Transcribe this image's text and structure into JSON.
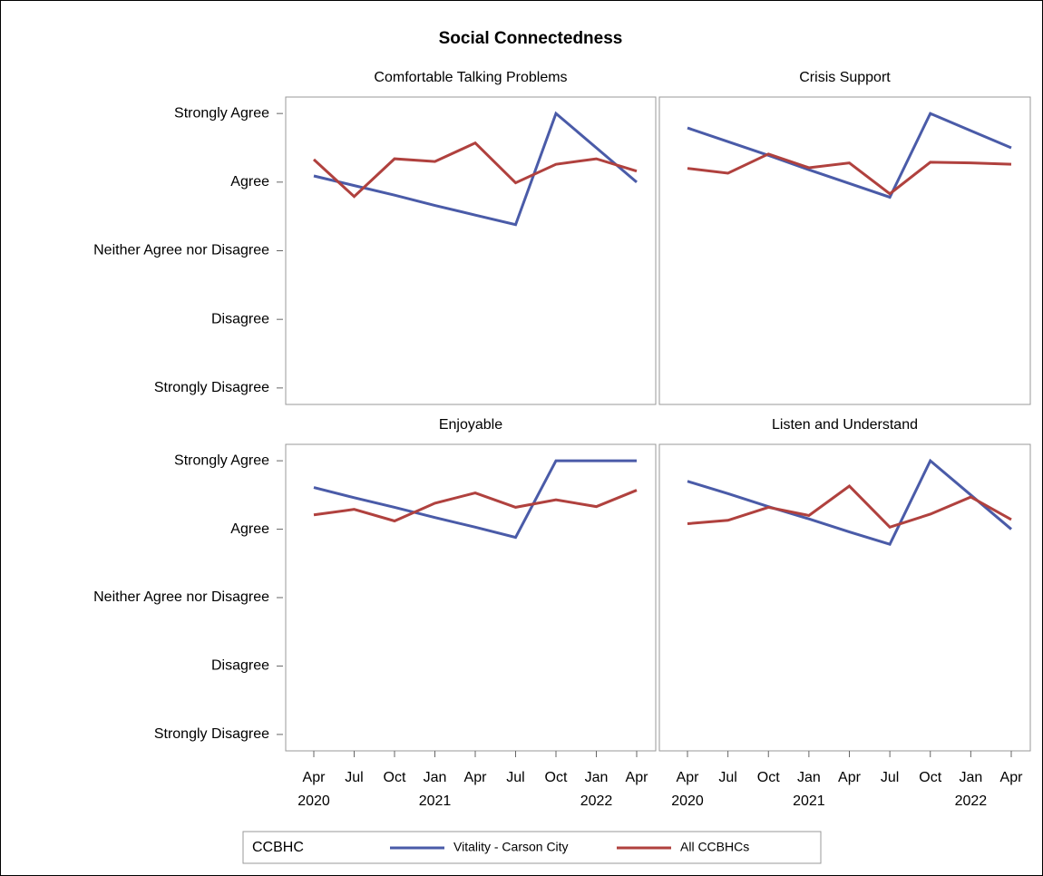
{
  "chart_data": {
    "type": "line",
    "title": "Social Connectedness",
    "categories": [
      "Apr",
      "Jul",
      "Oct",
      "Jan",
      "Apr",
      "Jul",
      "Oct",
      "Jan",
      "Apr"
    ],
    "x_years": [
      "2020",
      null,
      null,
      "2021",
      null,
      null,
      null,
      "2022",
      null
    ],
    "ylim": [
      0.76,
      5.24
    ],
    "yticks": [
      {
        "value": 1,
        "label": "Strongly Disagree"
      },
      {
        "value": 2,
        "label": "Disagree"
      },
      {
        "value": 3,
        "label": "Neither Agree nor Disagree"
      },
      {
        "value": 4,
        "label": "Agree"
      },
      {
        "value": 5,
        "label": "Strongly Agree"
      }
    ],
    "legend_title": "CCBHC",
    "legend": [
      {
        "name": "Vitality - Carson City",
        "color": "#4a5ba8"
      },
      {
        "name": "All CCBHCs",
        "color": "#b0413e"
      }
    ],
    "panels": [
      {
        "title": "Comfortable Talking Problems",
        "series": [
          {
            "values": [
              4.09,
              3.95,
              3.81,
              3.66,
              3.52,
              3.38,
              5.0,
              4.5,
              4.0
            ]
          },
          {
            "values": [
              4.33,
              3.79,
              4.34,
              4.3,
              4.57,
              3.99,
              4.26,
              4.34,
              4.16
            ]
          }
        ]
      },
      {
        "title": "Crisis Support",
        "series": [
          {
            "values": [
              4.79,
              4.59,
              4.39,
              4.18,
              3.98,
              3.78,
              5.0,
              4.75,
              4.5
            ]
          },
          {
            "values": [
              4.2,
              4.13,
              4.41,
              4.21,
              4.28,
              3.83,
              4.29,
              4.28,
              4.26
            ]
          }
        ]
      },
      {
        "title": "Enjoyable",
        "series": [
          {
            "values": [
              4.61,
              4.46,
              4.32,
              4.17,
              4.03,
              3.88,
              5.0,
              5.0,
              5.0
            ]
          },
          {
            "values": [
              4.21,
              4.29,
              4.12,
              4.38,
              4.53,
              4.32,
              4.43,
              4.33,
              4.57
            ]
          }
        ]
      },
      {
        "title": "Listen and Understand",
        "series": [
          {
            "values": [
              4.7,
              4.52,
              4.33,
              4.15,
              3.96,
              3.78,
              5.0,
              4.5,
              4.0
            ]
          },
          {
            "values": [
              4.08,
              4.13,
              4.32,
              4.2,
              4.63,
              4.03,
              4.22,
              4.47,
              4.14
            ]
          }
        ]
      }
    ]
  }
}
